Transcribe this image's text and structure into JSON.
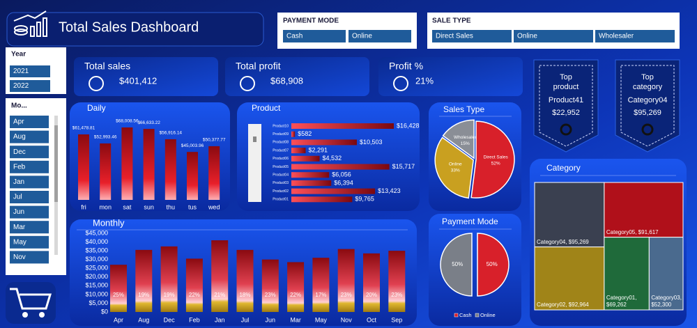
{
  "header": {
    "title": "Total Sales Dashboard"
  },
  "slicers": {
    "payment_mode": {
      "title": "PAYMENT MODE",
      "items": [
        "Cash",
        "Online"
      ]
    },
    "sale_type": {
      "title": "SALE TYPE",
      "items": [
        "Direct Sales",
        "Online",
        "Wholesaler"
      ]
    },
    "year": {
      "title": "Year",
      "items": [
        "2021",
        "2022"
      ]
    },
    "month": {
      "title": "Mo...",
      "items": [
        "Apr",
        "Aug",
        "Dec",
        "Feb",
        "Jan",
        "Jul",
        "Jun",
        "Mar",
        "May",
        "Nov"
      ]
    }
  },
  "kpis": [
    {
      "label": "Total sales",
      "value": "$401,412"
    },
    {
      "label": "Total profit",
      "value": "$68,908"
    },
    {
      "label": "Profit %",
      "value": "21%"
    }
  ],
  "badges": [
    {
      "title_lines": [
        "Top",
        "product"
      ],
      "name": "Product41",
      "value": "$22,952"
    },
    {
      "title_lines": [
        "Top",
        "category"
      ],
      "name": "Category04",
      "value": "$95,269"
    }
  ],
  "chart_data": [
    {
      "type": "bar",
      "title": "Daily",
      "categories": [
        "fri",
        "mon",
        "sat",
        "sun",
        "thu",
        "tus",
        "wed"
      ],
      "values": [
        61478.81,
        52993.46,
        68008.56,
        66633.22,
        56916.14,
        45003.96,
        50377.77
      ],
      "value_labels": [
        "$61,478.81",
        "$52,993.46",
        "$68,008.56",
        "$66,633.22",
        "$56,916.14",
        "$45,003.96",
        "$50,377.77"
      ]
    },
    {
      "type": "hbar",
      "title": "Product",
      "categories": [
        "Product10",
        "Product09",
        "Product08",
        "Product07",
        "Product06",
        "Product05",
        "Product04",
        "Product03",
        "Product02",
        "Product01"
      ],
      "values": [
        16428,
        582,
        10503,
        2291,
        4532,
        15717,
        6056,
        6394,
        13423,
        9765
      ],
      "value_labels": [
        "$16,428",
        "$582",
        "$10,503",
        "$2,291",
        "$4,532",
        "$15,717",
        "$6,056",
        "$6,394",
        "$13,423",
        "$9,765"
      ]
    },
    {
      "type": "pie",
      "title": "Sales Type",
      "categories": [
        "Direct Sales",
        "Online",
        "Wholesaler"
      ],
      "values": [
        52,
        33,
        15
      ],
      "value_labels": [
        "52%",
        "33%",
        "15%"
      ],
      "colors": [
        "#d8202a",
        "#c9a020",
        "#8a8e96"
      ],
      "legend": false
    },
    {
      "type": "pie",
      "title": "Payment Mode",
      "categories": [
        "Cash",
        "Online"
      ],
      "values": [
        50,
        50
      ],
      "value_labels": [
        "50%",
        "50%"
      ],
      "colors": [
        "#d8202a",
        "#7a7f88"
      ],
      "legend": true
    },
    {
      "type": "column",
      "title": "Monthly",
      "categories": [
        "Apr",
        "Aug",
        "Dec",
        "Feb",
        "Jan",
        "Jul",
        "Jun",
        "Mar",
        "May",
        "Nov",
        "Oct",
        "Sep"
      ],
      "values": [
        27000,
        35500,
        37500,
        30500,
        41000,
        35500,
        30000,
        28500,
        31000,
        36000,
        33500,
        35000
      ],
      "profit_labels": [
        "25%",
        "19%",
        "19%",
        "22%",
        "21%",
        "18%",
        "23%",
        "22%",
        "17%",
        "23%",
        "20%",
        "23%"
      ],
      "ylim": [
        0,
        45000
      ],
      "yticks": [
        {
          "value": 0,
          "label": "$0"
        },
        {
          "value": 5000,
          "label": "$5,000"
        },
        {
          "value": 10000,
          "label": "$10,000"
        },
        {
          "value": 15000,
          "label": "$15,000"
        },
        {
          "value": 20000,
          "label": "$20,000"
        },
        {
          "value": 25000,
          "label": "$25,000"
        },
        {
          "value": 30000,
          "label": "$30,000"
        },
        {
          "value": 35000,
          "label": "$35,000"
        },
        {
          "value": 40000,
          "label": "$40,000"
        },
        {
          "value": 45000,
          "label": "$45,000"
        }
      ]
    },
    {
      "type": "treemap",
      "title": "Category",
      "values": [
        95269,
        91617,
        92964,
        69262,
        52300
      ],
      "value_labels": [
        "Category04, $95,269",
        "Category05, $91,617",
        "Category02, $92,964",
        "Category01, $69,262",
        "Category03, $52,300"
      ],
      "colors": [
        "#3a4050",
        "#b0101a",
        "#a08418",
        "#1f6a3a",
        "#4a6a8e"
      ]
    }
  ]
}
